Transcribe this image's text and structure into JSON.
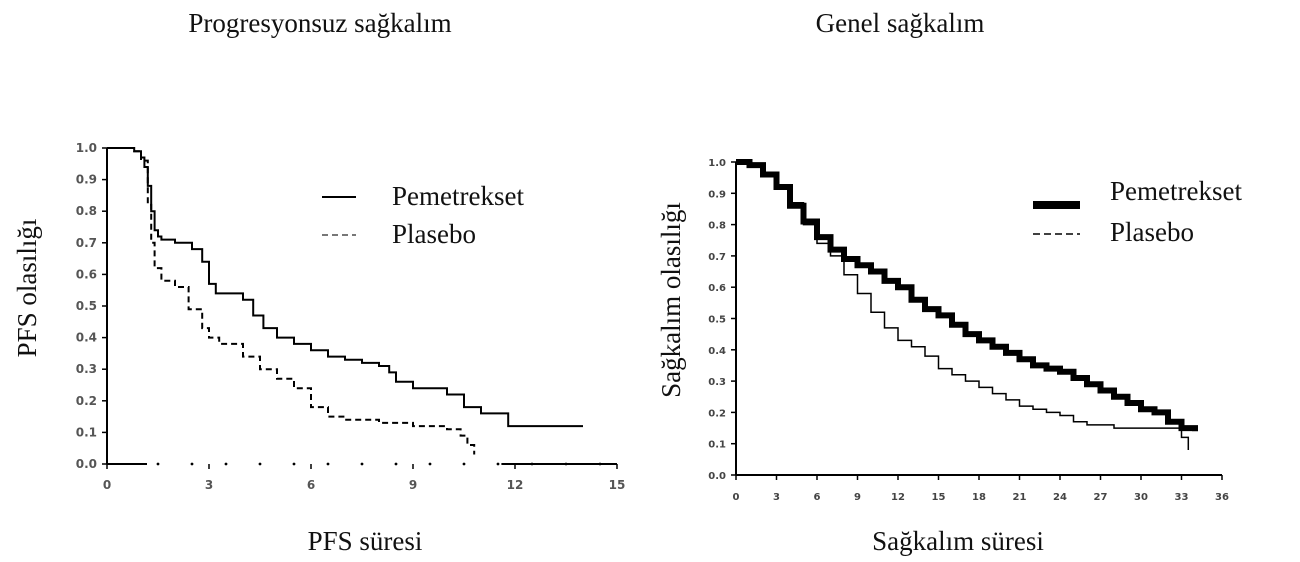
{
  "chart_data": [
    {
      "type": "line",
      "title": "Progresyonsuz sağkalım",
      "xlabel": "PFS süresi",
      "ylabel": "PFS olasılığı",
      "xlim": [
        0,
        15
      ],
      "ylim": [
        0,
        1.0
      ],
      "x_ticks": [
        "0",
        "3",
        "6",
        "9",
        "12",
        "15"
      ],
      "y_ticks": [
        "0.0",
        "0.1",
        "0.2",
        "0.3",
        "0.4",
        "0.5",
        "0.6",
        "0.7",
        "0.8",
        "0.9",
        "1.0"
      ],
      "grid": false,
      "legend_position": "top-right",
      "series": [
        {
          "name": "Pemetrekset",
          "style": "solid",
          "color": "#000000",
          "x": [
            0,
            0.8,
            1.0,
            1.1,
            1.2,
            1.3,
            1.4,
            1.5,
            1.6,
            2.0,
            2.5,
            2.8,
            3.0,
            3.2,
            4.0,
            4.3,
            4.6,
            5.0,
            5.5,
            6.0,
            6.5,
            7.0,
            7.5,
            8.0,
            8.3,
            8.5,
            9.0,
            10.0,
            10.5,
            11.0,
            11.8,
            14.0
          ],
          "y": [
            1.0,
            0.99,
            0.97,
            0.94,
            0.88,
            0.8,
            0.74,
            0.72,
            0.71,
            0.7,
            0.68,
            0.64,
            0.57,
            0.54,
            0.52,
            0.47,
            0.43,
            0.4,
            0.38,
            0.36,
            0.34,
            0.33,
            0.32,
            0.31,
            0.29,
            0.26,
            0.24,
            0.22,
            0.18,
            0.16,
            0.12,
            0.12
          ]
        },
        {
          "name": "Plasebo",
          "style": "dashed",
          "color": "#000000",
          "x": [
            0,
            0.8,
            1.0,
            1.2,
            1.3,
            1.4,
            1.6,
            2.0,
            2.4,
            2.8,
            3.0,
            3.3,
            4.0,
            4.5,
            5.0,
            5.5,
            6.0,
            6.5,
            7.0,
            8.0,
            9.0,
            10.0,
            10.4,
            10.6,
            10.8
          ],
          "y": [
            1.0,
            0.99,
            0.96,
            0.82,
            0.7,
            0.62,
            0.58,
            0.56,
            0.49,
            0.43,
            0.4,
            0.38,
            0.34,
            0.3,
            0.27,
            0.24,
            0.18,
            0.15,
            0.14,
            0.13,
            0.12,
            0.11,
            0.09,
            0.06,
            0.03
          ]
        }
      ]
    },
    {
      "type": "line",
      "title": "Genel sağkalım",
      "xlabel": "Sağkalım süresi",
      "ylabel": "Sağkalım olasılığı",
      "xlim": [
        0,
        36
      ],
      "ylim": [
        0,
        1.0
      ],
      "x_ticks": [
        "0",
        "3",
        "6",
        "9",
        "12",
        "15",
        "18",
        "21",
        "24",
        "27",
        "30",
        "33",
        "36"
      ],
      "y_ticks": [
        "0.0",
        "0.1",
        "0.2",
        "0.3",
        "0.4",
        "0.5",
        "0.6",
        "0.7",
        "0.8",
        "0.9",
        "1.0"
      ],
      "grid": false,
      "legend_position": "top-right",
      "series": [
        {
          "name": "Pemetrekset",
          "style": "thick",
          "color": "#000000",
          "x": [
            0,
            1,
            2,
            3,
            4,
            5,
            6,
            7,
            8,
            9,
            10,
            11,
            12,
            13,
            14,
            15,
            16,
            17,
            18,
            19,
            20,
            21,
            22,
            23,
            24,
            25,
            26,
            27,
            28,
            29,
            30,
            31,
            32,
            33,
            34
          ],
          "y": [
            1.0,
            0.99,
            0.96,
            0.92,
            0.86,
            0.81,
            0.76,
            0.72,
            0.69,
            0.67,
            0.65,
            0.62,
            0.6,
            0.56,
            0.53,
            0.51,
            0.48,
            0.45,
            0.43,
            0.41,
            0.39,
            0.37,
            0.35,
            0.34,
            0.33,
            0.31,
            0.29,
            0.27,
            0.25,
            0.23,
            0.21,
            0.2,
            0.17,
            0.15,
            0.14
          ]
        },
        {
          "name": "Plasebo",
          "style": "thin",
          "color": "#000000",
          "x": [
            0,
            1,
            2,
            3,
            4,
            5,
            6,
            7,
            8,
            9,
            10,
            11,
            12,
            13,
            14,
            15,
            16,
            17,
            18,
            19,
            20,
            21,
            22,
            23,
            24,
            25,
            26,
            27,
            28,
            29,
            30,
            31,
            32,
            33,
            33.5
          ],
          "y": [
            1.0,
            0.99,
            0.96,
            0.92,
            0.87,
            0.8,
            0.74,
            0.7,
            0.64,
            0.58,
            0.52,
            0.47,
            0.43,
            0.41,
            0.38,
            0.34,
            0.32,
            0.3,
            0.28,
            0.26,
            0.24,
            0.22,
            0.21,
            0.2,
            0.19,
            0.17,
            0.16,
            0.16,
            0.15,
            0.15,
            0.15,
            0.15,
            0.15,
            0.12,
            0.08
          ]
        }
      ]
    }
  ]
}
